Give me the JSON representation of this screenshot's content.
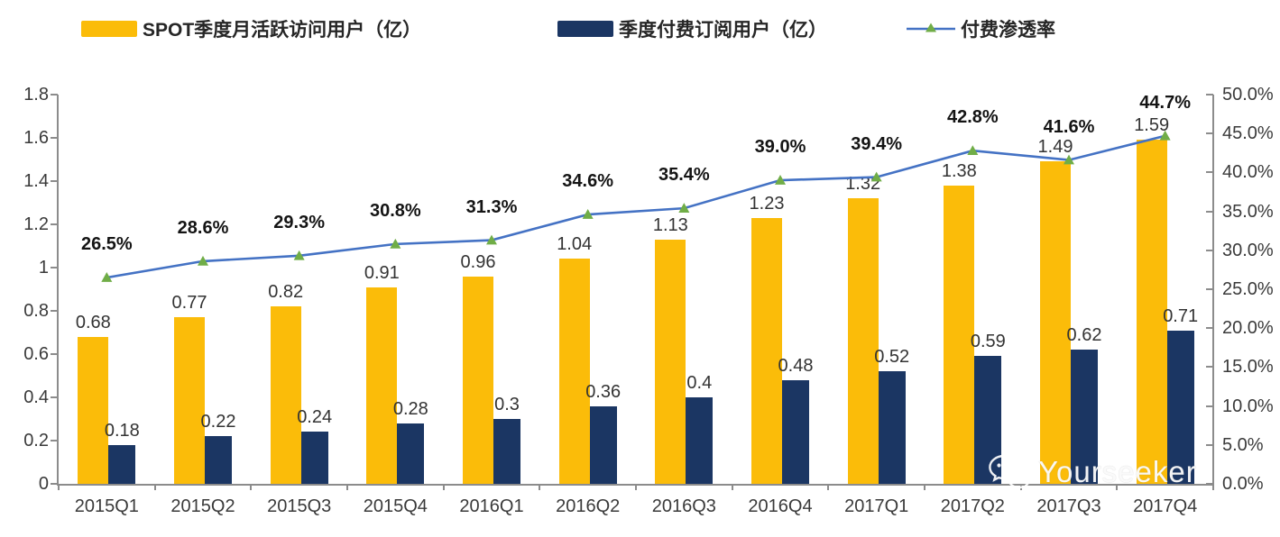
{
  "legend": {
    "items": [
      {
        "label": "SPOT季度月活跃访问用户（亿）",
        "color": "#FBBC09",
        "type": "bar"
      },
      {
        "label": "季度付费订阅用户（亿）",
        "color": "#1B3663",
        "type": "bar"
      },
      {
        "label": "付费渗透率",
        "color": "#4472C4",
        "marker_color": "#70AD47",
        "type": "line"
      }
    ]
  },
  "chart_data": {
    "type": "bar",
    "subtype": "grouped-bar-with-line-combo",
    "categories": [
      "2015Q1",
      "2015Q2",
      "2015Q3",
      "2015Q4",
      "2016Q1",
      "2016Q2",
      "2016Q3",
      "2016Q4",
      "2017Q1",
      "2017Q2",
      "2017Q3",
      "2017Q4"
    ],
    "series": [
      {
        "name": "SPOT季度月活跃访问用户（亿）",
        "type": "bar",
        "axis": "left",
        "color": "#FBBC09",
        "values": [
          0.68,
          0.77,
          0.82,
          0.91,
          0.96,
          1.04,
          1.13,
          1.23,
          1.32,
          1.38,
          1.49,
          1.59
        ],
        "labels": [
          "0.68",
          "0.77",
          "0.82",
          "0.91",
          "0.96",
          "1.04",
          "1.13",
          "1.23",
          "1.32",
          "1.38",
          "1.49",
          "1.59"
        ]
      },
      {
        "name": "季度付费订阅用户（亿）",
        "type": "bar",
        "axis": "left",
        "color": "#1B3663",
        "values": [
          0.18,
          0.22,
          0.24,
          0.28,
          0.3,
          0.36,
          0.4,
          0.48,
          0.52,
          0.59,
          0.62,
          0.71
        ],
        "labels": [
          "0.18",
          "0.22",
          "0.24",
          "0.28",
          "0.3",
          "0.36",
          "0.4",
          "0.48",
          "0.52",
          "0.59",
          "0.62",
          "0.71"
        ]
      },
      {
        "name": "付费渗透率",
        "type": "line",
        "axis": "right",
        "color": "#4472C4",
        "marker": "triangle",
        "marker_color": "#70AD47",
        "values_percent": [
          26.5,
          28.6,
          29.3,
          30.8,
          31.3,
          34.6,
          35.4,
          39.0,
          39.4,
          42.8,
          41.6,
          44.7
        ],
        "labels": [
          "26.5%",
          "28.6%",
          "29.3%",
          "30.8%",
          "31.3%",
          "34.6%",
          "35.4%",
          "39.0%",
          "39.4%",
          "42.8%",
          "41.6%",
          "44.7%"
        ]
      }
    ],
    "left_axis": {
      "min": 0,
      "max": 1.8,
      "tick_step": 0.2,
      "ticks": [
        "0",
        "0.2",
        "0.4",
        "0.6",
        "0.8",
        "1",
        "1.2",
        "1.4",
        "1.6",
        "1.8"
      ]
    },
    "right_axis": {
      "min": 0,
      "max": 50,
      "tick_step": 5,
      "ticks": [
        "0.0%",
        "5.0%",
        "10.0%",
        "15.0%",
        "20.0%",
        "25.0%",
        "30.0%",
        "35.0%",
        "40.0%",
        "45.0%",
        "50.0%"
      ]
    },
    "grid": false,
    "legend_position": "top",
    "title": "",
    "xlabel": "",
    "ylabel": ""
  },
  "watermark": {
    "text": "Yourseeker",
    "icon": "wechat-icon"
  }
}
